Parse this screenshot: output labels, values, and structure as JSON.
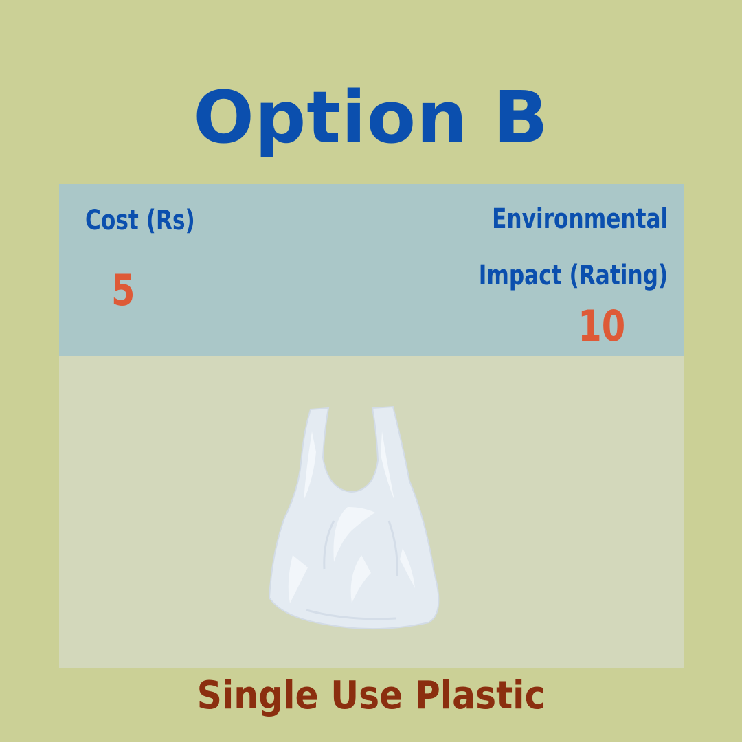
{
  "title": "Option B",
  "card": {
    "cost_label": "Cost (Rs)",
    "cost_value": "5",
    "impact_label_line1": "Environmental",
    "impact_label_line2": "Impact (Rating)",
    "impact_value": "10"
  },
  "image": {
    "icon": "plastic-bag-icon"
  },
  "caption": "Single Use Plastic",
  "colors": {
    "background": "#cbd096",
    "title": "#0b4fae",
    "values": "#de5a37",
    "caption": "#8b2e0f",
    "card_top": "#aac7c8",
    "card_body": "#d3d8bb"
  }
}
